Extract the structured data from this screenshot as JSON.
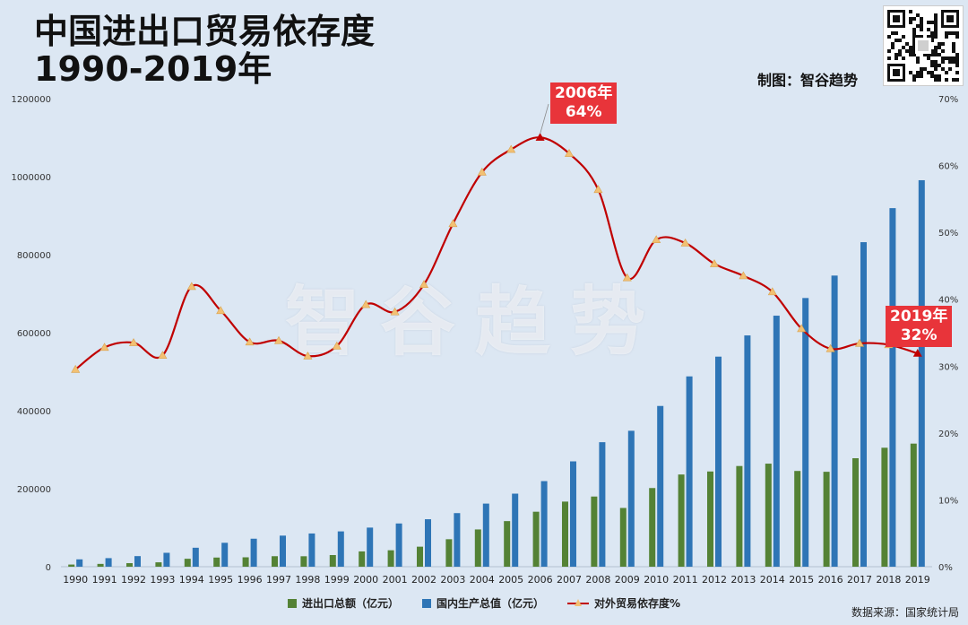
{
  "header": {
    "title_line1": "中国进出口贸易依存度",
    "title_line2": "1990-2019年",
    "credit": "制图：智谷趋势"
  },
  "watermark": "智谷趋势",
  "source": "数据来源：国家统计局",
  "callouts": {
    "peak_year": "2006年",
    "peak_value": "64%",
    "last_year": "2019年",
    "last_value": "32%"
  },
  "legend": {
    "trade": "进出口总额（亿元）",
    "gdp": "国内生产总值（亿元）",
    "ratio": "对外贸易依存度%"
  },
  "colors": {
    "trade": "#548235",
    "gdp": "#2e75b6",
    "ratio_line": "#c00000",
    "ratio_marker": "#f2c073",
    "callout_bg": "#e8343a"
  },
  "icons": {
    "qr": "qr-code-icon"
  },
  "chart_data": {
    "type": "bar",
    "categories": [
      "1990",
      "1991",
      "1992",
      "1993",
      "1994",
      "1995",
      "1996",
      "1997",
      "1998",
      "1999",
      "2000",
      "2001",
      "2002",
      "2003",
      "2004",
      "2005",
      "2006",
      "2007",
      "2008",
      "2009",
      "2010",
      "2011",
      "2012",
      "2013",
      "2014",
      "2015",
      "2016",
      "2017",
      "2018",
      "2019"
    ],
    "series": [
      {
        "name": "进出口总额（亿元）",
        "type": "bar",
        "axis": "left",
        "values": [
          5560,
          7226,
          9120,
          11271,
          20382,
          23500,
          24134,
          26967,
          26850,
          29896,
          39273,
          42184,
          51378,
          70484,
          95539,
          116922,
          140974,
          166924,
          179921,
          150648,
          201722,
          236402,
          244160,
          258169,
          264242,
          245503,
          243386,
          278099,
          305010,
          315627
        ]
      },
      {
        "name": "国内生产总值（亿元）",
        "type": "bar",
        "axis": "left",
        "values": [
          18873,
          22006,
          27195,
          35673,
          48638,
          61340,
          71814,
          79715,
          85196,
          90564,
          100280,
          110863,
          121717,
          137422,
          161840,
          187319,
          219439,
          270092,
          319245,
          348518,
          412119,
          487940,
          538580,
          592963,
          643563,
          688858,
          746395,
          832036,
          919281,
          990865
        ]
      },
      {
        "name": "对外贸易依存度%",
        "type": "line",
        "axis": "right",
        "values": [
          29.5,
          32.8,
          33.5,
          31.6,
          41.9,
          38.3,
          33.6,
          33.8,
          31.5,
          33.0,
          39.2,
          38.1,
          42.2,
          51.3,
          59.0,
          62.4,
          64.2,
          61.8,
          56.4,
          43.2,
          48.9,
          48.4,
          45.3,
          43.5,
          41.1,
          35.6,
          32.6,
          33.4,
          33.2,
          31.9
        ]
      }
    ],
    "y_left": {
      "min": 0,
      "max": 1200000,
      "ticks": [
        "0",
        "200000",
        "400000",
        "600000",
        "800000",
        "1000000",
        "1200000"
      ]
    },
    "y_right": {
      "min": 0,
      "max": 70,
      "ticks": [
        "0%",
        "10%",
        "20%",
        "30%",
        "40%",
        "50%",
        "60%",
        "70%"
      ]
    },
    "grid": false,
    "legend_position": "bottom"
  }
}
